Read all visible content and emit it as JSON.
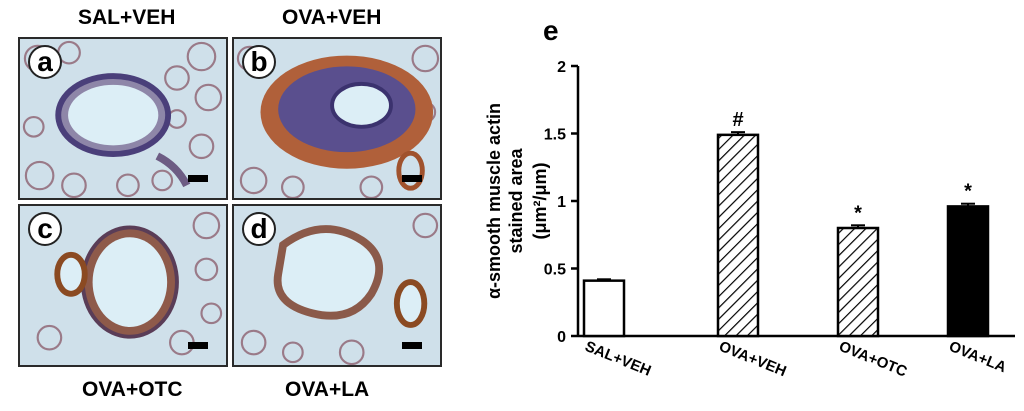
{
  "panels": [
    {
      "letter": "a",
      "title": "SAL+VEH"
    },
    {
      "letter": "b",
      "title": "OVA+VEH"
    },
    {
      "letter": "c",
      "title": "OVA+OTC"
    },
    {
      "letter": "d",
      "title": "OVA+LA"
    }
  ],
  "chart_panel_letter": "e",
  "colors": {
    "tissue_bg": "#cfe0ea",
    "alveolar_wall": "#9a7a88",
    "nuclei": "#4a3f7a",
    "brown_stain": "#a0522d",
    "lumen": "#dceef6",
    "bar_fill_dark": "#000000",
    "bar_outline": "#000000"
  },
  "chart_data": {
    "type": "bar",
    "categories": [
      "SAL+VEH",
      "OVA+VEH",
      "OVA+OTC",
      "OVA+LA"
    ],
    "values": [
      0.41,
      1.49,
      0.8,
      0.96
    ],
    "errors": [
      0.01,
      0.02,
      0.02,
      0.02
    ],
    "fills": [
      "open",
      "hatched",
      "hatched",
      "solid"
    ],
    "annotations": [
      "",
      "#",
      "*",
      "*"
    ],
    "ylabel_lines": [
      "α-smooth muscle actin",
      "stained area",
      "(μm²/μm)"
    ],
    "ylim": [
      0,
      2
    ],
    "yticks": [
      "0",
      "0.5",
      "1",
      "1.5",
      "2"
    ],
    "ytick_values": [
      0,
      0.5,
      1,
      1.5,
      2
    ]
  }
}
